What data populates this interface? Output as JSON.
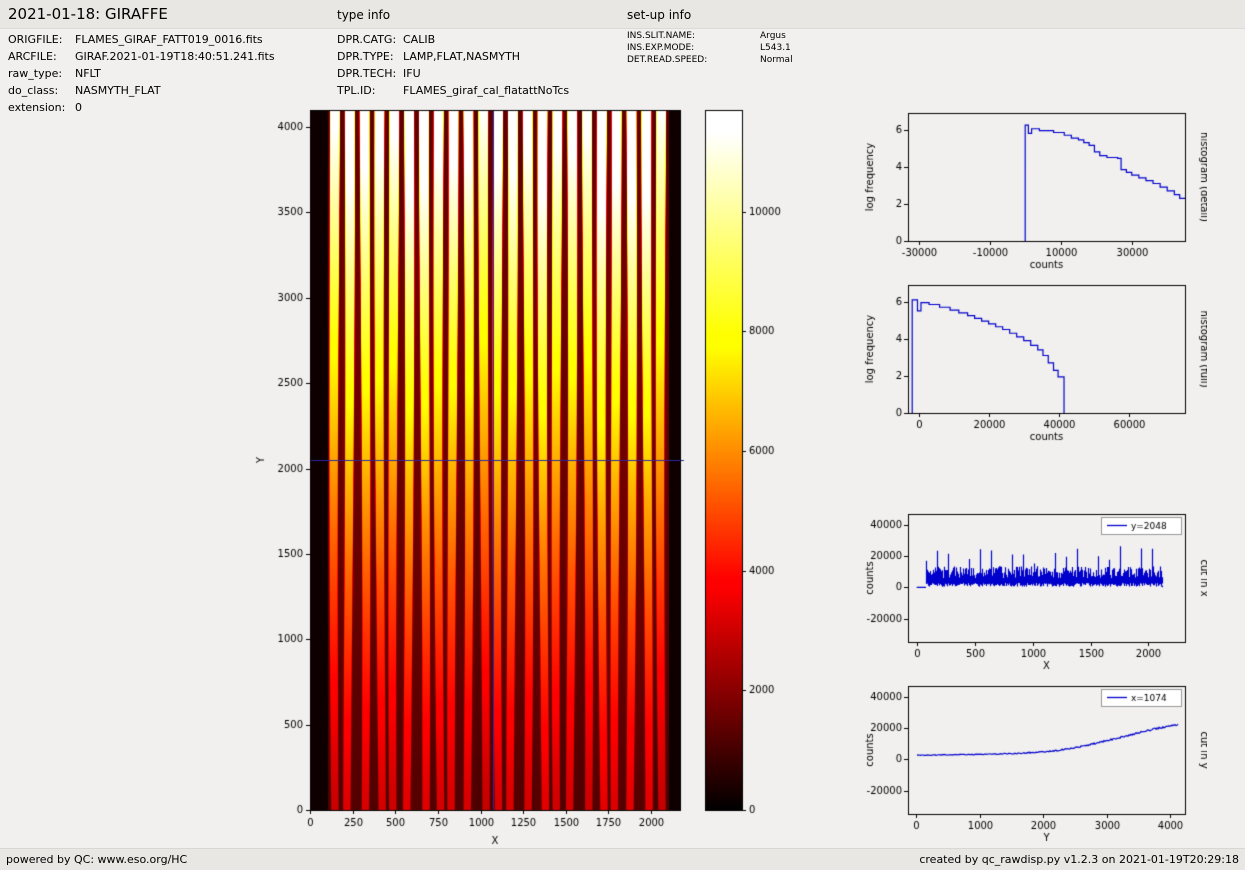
{
  "header": {
    "title": "2021-01-18: GIRAFFE",
    "type_info_label": "type info",
    "setup_info_label": "set-up info"
  },
  "metadata": {
    "file_info": [
      {
        "label": "ORIGFILE:",
        "value": "FLAMES_GIRAF_FATT019_0016.fits"
      },
      {
        "label": "ARCFILE:",
        "value": "GIRAF.2021-01-19T18:40:51.241.fits"
      },
      {
        "label": "raw_type:",
        "value": "NFLT"
      },
      {
        "label": "do_class:",
        "value": "NASMYTH_FLAT"
      },
      {
        "label": "extension:",
        "value": "0"
      }
    ],
    "type_info": [
      {
        "label": "DPR.CATG:",
        "value": "CALIB"
      },
      {
        "label": "DPR.TYPE:",
        "value": "LAMP,FLAT,NASMYTH"
      },
      {
        "label": "DPR.TECH:",
        "value": "IFU"
      },
      {
        "label": "TPL.ID:",
        "value": "FLAMES_giraf_cal_flatattNoTcs"
      }
    ],
    "setup_info": [
      {
        "label": "INS.SLIT.NAME:",
        "value": "Argus"
      },
      {
        "label": "INS.EXP.MODE:",
        "value": "L543.1"
      },
      {
        "label": "DET.READ.SPEED:",
        "value": "Normal"
      }
    ]
  },
  "footer": {
    "left": "powered by QC: www.eso.org/HC",
    "right": "created by qc_rawdisp.py v1.2.3 on 2021-01-19T20:29:18"
  },
  "chart_data": [
    {
      "id": "detector_image",
      "type": "heatmap",
      "title": "",
      "xlabel": "X",
      "ylabel": "Y",
      "xlim": [
        0,
        2170
      ],
      "ylim": [
        0,
        4100
      ],
      "xticks": [
        0,
        250,
        500,
        750,
        1000,
        1250,
        1500,
        1750,
        2000
      ],
      "yticks": [
        0,
        500,
        1000,
        1500,
        2000,
        2500,
        3000,
        3500,
        4000
      ],
      "colormap": "hot",
      "vmin": 0,
      "vmax": 11700,
      "colorbar_ticks": [
        0,
        2000,
        4000,
        6000,
        8000,
        10000
      ],
      "crosshair": {
        "x": 1074,
        "y": 2048,
        "color": "#2929a3"
      },
      "fibers": {
        "count": 23,
        "x_start": 100,
        "x_end": 2100
      },
      "description": "Raw GIRAFFE Argus flat-field frame: vertical fiber-trace stripes, bright (white/yellow) at top Y~4100 fading to red/dark at bottom Y~0, black margins at left and right edges"
    },
    {
      "id": "histogram_detail",
      "type": "line",
      "xlabel": "counts",
      "ylabel": "log frequency",
      "right_label": "histogram (detail)",
      "xlim": [
        -33000,
        45000
      ],
      "ylim": [
        0,
        6.9
      ],
      "xticks": [
        -30000,
        -10000,
        10000,
        30000
      ],
      "yticks": [
        0,
        2,
        4,
        6
      ],
      "color": "#0000cc",
      "points": [
        [
          0,
          0
        ],
        [
          0,
          6.25
        ],
        [
          900,
          6.25
        ],
        [
          900,
          5.8
        ],
        [
          1800,
          5.8
        ],
        [
          1800,
          6.05
        ],
        [
          4000,
          6.05
        ],
        [
          4000,
          5.95
        ],
        [
          8000,
          5.95
        ],
        [
          8000,
          5.85
        ],
        [
          11000,
          5.85
        ],
        [
          11000,
          5.7
        ],
        [
          13000,
          5.7
        ],
        [
          13000,
          5.55
        ],
        [
          15000,
          5.55
        ],
        [
          15000,
          5.45
        ],
        [
          16500,
          5.45
        ],
        [
          16500,
          5.3
        ],
        [
          18000,
          5.3
        ],
        [
          18000,
          5.15
        ],
        [
          19500,
          5.15
        ],
        [
          19500,
          4.8
        ],
        [
          21000,
          4.8
        ],
        [
          21000,
          4.6
        ],
        [
          23000,
          4.6
        ],
        [
          23000,
          4.5
        ],
        [
          26000,
          4.5
        ],
        [
          26000,
          4.45
        ],
        [
          27000,
          4.45
        ],
        [
          27000,
          3.85
        ],
        [
          28500,
          3.85
        ],
        [
          28500,
          3.7
        ],
        [
          30000,
          3.7
        ],
        [
          30000,
          3.55
        ],
        [
          32000,
          3.55
        ],
        [
          32000,
          3.4
        ],
        [
          34000,
          3.4
        ],
        [
          34000,
          3.25
        ],
        [
          36000,
          3.25
        ],
        [
          36000,
          3.1
        ],
        [
          38000,
          3.1
        ],
        [
          38000,
          2.9
        ],
        [
          40000,
          2.9
        ],
        [
          40000,
          2.7
        ],
        [
          42000,
          2.7
        ],
        [
          42000,
          2.5
        ],
        [
          43500,
          2.5
        ],
        [
          43500,
          2.3
        ],
        [
          45000,
          2.3
        ]
      ]
    },
    {
      "id": "histogram_full",
      "type": "line",
      "xlabel": "counts",
      "ylabel": "log frequency",
      "right_label": "histogram (full)",
      "xlim": [
        -3000,
        76000
      ],
      "ylim": [
        0,
        6.9
      ],
      "xticks": [
        0,
        20000,
        40000,
        60000
      ],
      "yticks": [
        0,
        2,
        4,
        6
      ],
      "color": "#0000cc",
      "points": [
        [
          -1800,
          0
        ],
        [
          -1800,
          6.1
        ],
        [
          -300,
          6.1
        ],
        [
          -300,
          5.5
        ],
        [
          700,
          5.5
        ],
        [
          700,
          5.95
        ],
        [
          3000,
          5.95
        ],
        [
          3000,
          5.85
        ],
        [
          6000,
          5.85
        ],
        [
          6000,
          5.7
        ],
        [
          9000,
          5.7
        ],
        [
          9000,
          5.55
        ],
        [
          11500,
          5.55
        ],
        [
          11500,
          5.4
        ],
        [
          14000,
          5.4
        ],
        [
          14000,
          5.25
        ],
        [
          16000,
          5.25
        ],
        [
          16000,
          5.1
        ],
        [
          18000,
          5.1
        ],
        [
          18000,
          4.95
        ],
        [
          20000,
          4.95
        ],
        [
          20000,
          4.8
        ],
        [
          22000,
          4.8
        ],
        [
          22000,
          4.65
        ],
        [
          24000,
          4.65
        ],
        [
          24000,
          4.5
        ],
        [
          26000,
          4.5
        ],
        [
          26000,
          4.3
        ],
        [
          28000,
          4.3
        ],
        [
          28000,
          4.1
        ],
        [
          30000,
          4.1
        ],
        [
          30000,
          3.9
        ],
        [
          32000,
          3.9
        ],
        [
          32000,
          3.65
        ],
        [
          34000,
          3.65
        ],
        [
          34000,
          3.4
        ],
        [
          35500,
          3.4
        ],
        [
          35500,
          3.1
        ],
        [
          37000,
          3.1
        ],
        [
          37000,
          2.7
        ],
        [
          38500,
          2.7
        ],
        [
          38500,
          2.3
        ],
        [
          39800,
          2.3
        ],
        [
          39800,
          1.95
        ],
        [
          41500,
          1.95
        ],
        [
          41500,
          0
        ]
      ]
    },
    {
      "id": "cut_in_x",
      "type": "band",
      "xlabel": "X",
      "ylabel": "counts",
      "right_label": "cut in x",
      "legend": "y=2048",
      "xlim": [
        -75,
        2315
      ],
      "ylim": [
        -35000,
        47000
      ],
      "xticks": [
        0,
        500,
        1000,
        1500,
        2000
      ],
      "yticks": [
        -20000,
        0,
        20000,
        40000
      ],
      "color": "#0000cc",
      "band": {
        "x_start": 80,
        "x_end": 2120,
        "n_spikes": 22,
        "low_min": 400,
        "low_max": 2800,
        "high_min": 6000,
        "high_max": 13500,
        "spike_min": 15000,
        "spike_max": 26500
      }
    },
    {
      "id": "cut_in_y",
      "type": "trace",
      "xlabel": "Y",
      "ylabel": "counts",
      "right_label": "cut in y",
      "legend": "x=1074",
      "xlim": [
        -130,
        4230
      ],
      "ylim": [
        -35000,
        47000
      ],
      "xticks": [
        0,
        1000,
        2000,
        3000,
        4000
      ],
      "yticks": [
        -20000,
        0,
        20000,
        40000
      ],
      "color": "#0000cc",
      "noise": 420,
      "points": [
        [
          0,
          2600
        ],
        [
          300,
          2800
        ],
        [
          600,
          3000
        ],
        [
          900,
          3100
        ],
        [
          1200,
          3300
        ],
        [
          1500,
          3700
        ],
        [
          1800,
          4300
        ],
        [
          2000,
          4800
        ],
        [
          2200,
          5600
        ],
        [
          2400,
          6700
        ],
        [
          2600,
          8300
        ],
        [
          2800,
          10000
        ],
        [
          3000,
          12000
        ],
        [
          3200,
          14000
        ],
        [
          3400,
          16000
        ],
        [
          3600,
          18000
        ],
        [
          3800,
          20000
        ],
        [
          4000,
          21500
        ],
        [
          4120,
          22400
        ]
      ]
    }
  ]
}
